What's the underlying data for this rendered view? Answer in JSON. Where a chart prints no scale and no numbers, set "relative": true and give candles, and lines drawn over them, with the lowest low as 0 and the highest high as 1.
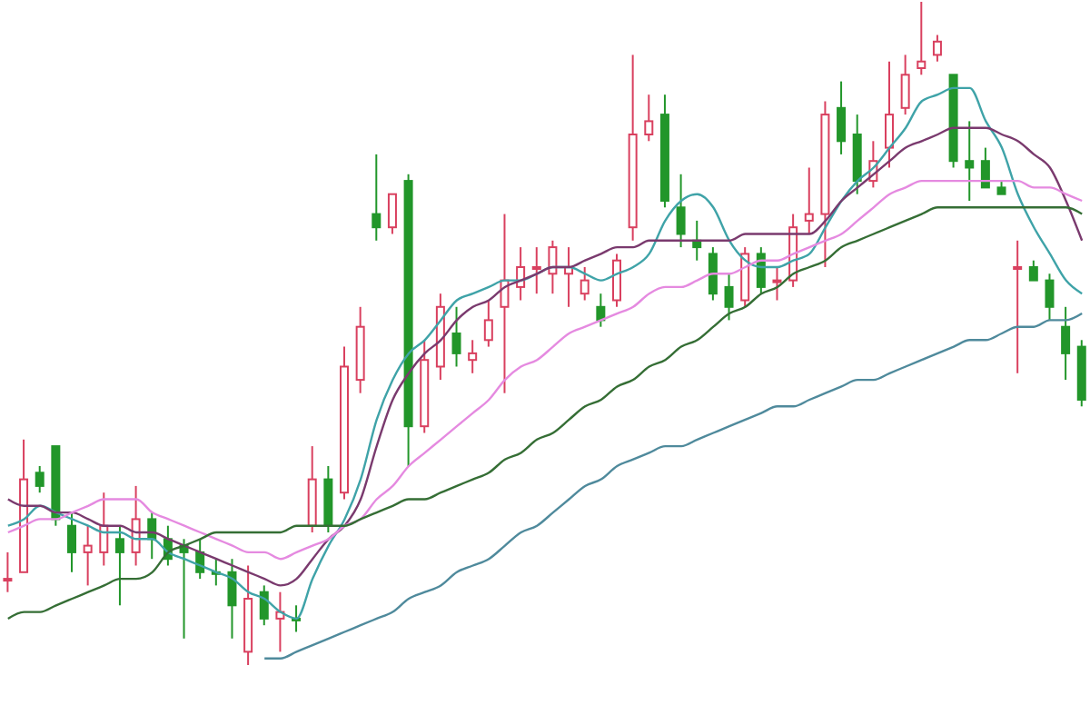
{
  "chart_data": {
    "type": "candlestick",
    "relative": true,
    "marker": "none",
    "categories": [
      null,
      null,
      null,
      null,
      null,
      null,
      null,
      null,
      null,
      null,
      null,
      null,
      null,
      null,
      null,
      null,
      null,
      null,
      null,
      null,
      null,
      null,
      null,
      null,
      null,
      null,
      null,
      null,
      null,
      null,
      null,
      null,
      null,
      null,
      null,
      null,
      null,
      null,
      null,
      null,
      null,
      null,
      null,
      null,
      null,
      null,
      null,
      null,
      null,
      null,
      null,
      null,
      null,
      null,
      null,
      null,
      null,
      null,
      null,
      null,
      null,
      null,
      null,
      null,
      null,
      null,
      null,
      null
    ],
    "ohlc": [
      [
        0.13,
        0.17,
        0.11,
        0.13
      ],
      [
        0.14,
        0.34,
        0.14,
        0.28
      ],
      [
        0.29,
        0.3,
        0.26,
        0.27
      ],
      [
        0.33,
        0.33,
        0.21,
        0.22
      ],
      [
        0.21,
        0.23,
        0.14,
        0.17
      ],
      [
        0.17,
        0.21,
        0.12,
        0.18
      ],
      [
        0.17,
        0.26,
        0.15,
        0.21
      ],
      [
        0.19,
        0.21,
        0.09,
        0.17
      ],
      [
        0.17,
        0.27,
        0.15,
        0.22
      ],
      [
        0.22,
        0.23,
        0.16,
        0.19
      ],
      [
        0.19,
        0.21,
        0.15,
        0.16
      ],
      [
        0.18,
        0.19,
        0.04,
        0.17
      ],
      [
        0.17,
        0.19,
        0.13,
        0.14
      ],
      [
        0.14,
        0.16,
        0.12,
        0.14
      ],
      [
        0.14,
        0.16,
        0.04,
        0.09
      ],
      [
        0.02,
        0.15,
        0,
        0.1
      ],
      [
        0.11,
        0.12,
        0.06,
        0.07
      ],
      [
        0.07,
        0.11,
        0.02,
        0.08
      ],
      [
        0.07,
        0.09,
        0.05,
        0.07
      ],
      [
        0.21,
        0.33,
        0.2,
        0.28
      ],
      [
        0.28,
        0.3,
        0.2,
        0.21
      ],
      [
        0.26,
        0.48,
        0.25,
        0.45
      ],
      [
        0.43,
        0.54,
        0.41,
        0.51
      ],
      [
        0.68,
        0.77,
        0.64,
        0.66
      ],
      [
        0.66,
        0.71,
        0.65,
        0.71
      ],
      [
        0.73,
        0.74,
        0.3,
        0.36
      ],
      [
        0.36,
        0.49,
        0.35,
        0.46
      ],
      [
        0.45,
        0.56,
        0.43,
        0.54
      ],
      [
        0.5,
        0.54,
        0.45,
        0.47
      ],
      [
        0.46,
        0.49,
        0.44,
        0.47
      ],
      [
        0.49,
        0.55,
        0.48,
        0.52
      ],
      [
        0.54,
        0.68,
        0.41,
        0.58
      ],
      [
        0.57,
        0.63,
        0.55,
        0.6
      ],
      [
        0.6,
        0.63,
        0.56,
        0.6
      ],
      [
        0.59,
        0.64,
        0.56,
        0.63
      ],
      [
        0.59,
        0.63,
        0.54,
        0.6
      ],
      [
        0.56,
        0.6,
        0.55,
        0.58
      ],
      [
        0.54,
        0.56,
        0.51,
        0.52
      ],
      [
        0.55,
        0.62,
        0.54,
        0.61
      ],
      [
        0.66,
        0.92,
        0.64,
        0.8
      ],
      [
        0.8,
        0.86,
        0.79,
        0.82
      ],
      [
        0.83,
        0.86,
        0.69,
        0.7
      ],
      [
        0.69,
        0.74,
        0.63,
        0.65
      ],
      [
        0.64,
        0.67,
        0.61,
        0.63
      ],
      [
        0.62,
        0.63,
        0.55,
        0.56
      ],
      [
        0.57,
        0.59,
        0.52,
        0.54
      ],
      [
        0.55,
        0.63,
        0.54,
        0.62
      ],
      [
        0.62,
        0.63,
        0.56,
        0.57
      ],
      [
        0.58,
        0.6,
        0.55,
        0.58
      ],
      [
        0.58,
        0.68,
        0.57,
        0.66
      ],
      [
        0.67,
        0.75,
        0.65,
        0.68
      ],
      [
        0.68,
        0.85,
        0.6,
        0.83
      ],
      [
        0.84,
        0.88,
        0.77,
        0.79
      ],
      [
        0.8,
        0.83,
        0.71,
        0.73
      ],
      [
        0.73,
        0.79,
        0.72,
        0.76
      ],
      [
        0.78,
        0.91,
        0.75,
        0.83
      ],
      [
        0.84,
        0.92,
        0.83,
        0.89
      ],
      [
        0.9,
        1,
        0.89,
        0.91
      ],
      [
        0.92,
        0.95,
        0.91,
        0.94
      ],
      [
        0.89,
        0.89,
        0.75,
        0.76
      ],
      [
        0.76,
        0.82,
        0.7,
        0.75
      ],
      [
        0.76,
        0.78,
        0.72,
        0.72
      ],
      [
        0.72,
        0.73,
        0.71,
        0.71
      ],
      [
        0.6,
        0.64,
        0.44,
        0.6
      ],
      [
        0.6,
        0.61,
        0.58,
        0.58
      ],
      [
        0.58,
        0.59,
        0.52,
        0.54
      ],
      [
        0.51,
        0.54,
        0.43,
        0.47
      ],
      [
        0.48,
        0.49,
        0.39,
        0.4
      ]
    ],
    "colors": [
      "#d9405f",
      "#d9405f",
      "#22962a",
      "#22962a",
      "#22962a",
      "#d9405f",
      "#d9405f",
      "#22962a",
      "#d9405f",
      "#22962a",
      "#22962a",
      "#22962a",
      "#22962a",
      "#22962a",
      "#22962a",
      "#d9405f",
      "#22962a",
      "#d9405f",
      "#22962a",
      "#d9405f",
      "#22962a",
      "#d9405f",
      "#d9405f",
      "#22962a",
      "#d9405f",
      "#22962a",
      "#d9405f",
      "#d9405f",
      "#22962a",
      "#d9405f",
      "#d9405f",
      "#d9405f",
      "#d9405f",
      "#d9405f",
      "#d9405f",
      "#d9405f",
      "#d9405f",
      "#22962a",
      "#d9405f",
      "#d9405f",
      "#d9405f",
      "#22962a",
      "#22962a",
      "#22962a",
      "#22962a",
      "#22962a",
      "#d9405f",
      "#22962a",
      "#d9405f",
      "#d9405f",
      "#d9405f",
      "#d9405f",
      "#22962a",
      "#22962a",
      "#d9405f",
      "#d9405f",
      "#d9405f",
      "#d9405f",
      "#d9405f",
      "#22962a",
      "#22962a",
      "#22962a",
      "#22962a",
      "#d9405f",
      "#22962a",
      "#22962a",
      "#22962a",
      "#22962a"
    ],
    "series": [
      {
        "type": "line",
        "color": "#3fa3a8",
        "values": [
          0.21,
          0.22,
          0.24,
          0.23,
          0.22,
          0.21,
          0.2,
          0.2,
          0.19,
          0.19,
          0.17,
          0.16,
          0.15,
          0.14,
          0.13,
          0.11,
          0.1,
          0.08,
          0.07,
          0.13,
          0.18,
          0.22,
          0.28,
          0.37,
          0.43,
          0.47,
          0.49,
          0.52,
          0.55,
          0.56,
          0.57,
          0.58,
          0.58,
          0.59,
          0.6,
          0.6,
          0.59,
          0.58,
          0.59,
          0.6,
          0.62,
          0.67,
          0.7,
          0.71,
          0.69,
          0.64,
          0.61,
          0.6,
          0.6,
          0.61,
          0.62,
          0.66,
          0.7,
          0.73,
          0.75,
          0.78,
          0.81,
          0.85,
          0.86,
          0.87,
          0.87,
          0.82,
          0.78,
          0.71,
          0.66,
          0.62,
          0.58,
          0.56
        ]
      },
      {
        "type": "line",
        "color": "#7a3a6e",
        "values": [
          0.25,
          0.24,
          0.24,
          0.23,
          0.23,
          0.22,
          0.21,
          0.21,
          0.2,
          0.2,
          0.19,
          0.18,
          0.17,
          0.16,
          0.15,
          0.14,
          0.13,
          0.12,
          0.13,
          0.16,
          0.19,
          0.21,
          0.25,
          0.33,
          0.4,
          0.44,
          0.47,
          0.49,
          0.52,
          0.54,
          0.55,
          0.57,
          0.58,
          0.59,
          0.6,
          0.6,
          0.61,
          0.62,
          0.63,
          0.63,
          0.64,
          0.64,
          0.64,
          0.64,
          0.64,
          0.64,
          0.65,
          0.65,
          0.65,
          0.65,
          0.65,
          0.67,
          0.7,
          0.72,
          0.74,
          0.76,
          0.78,
          0.79,
          0.8,
          0.81,
          0.81,
          0.81,
          0.8,
          0.79,
          0.77,
          0.75,
          0.7,
          0.64
        ]
      },
      {
        "type": "line",
        "color": "#e58ae0",
        "values": [
          0.2,
          0.21,
          0.22,
          0.22,
          0.23,
          0.24,
          0.25,
          0.25,
          0.25,
          0.23,
          0.22,
          0.21,
          0.2,
          0.19,
          0.18,
          0.17,
          0.17,
          0.16,
          0.17,
          0.18,
          0.19,
          0.21,
          0.22,
          0.25,
          0.27,
          0.3,
          0.32,
          0.34,
          0.36,
          0.38,
          0.4,
          0.43,
          0.45,
          0.46,
          0.48,
          0.5,
          0.51,
          0.52,
          0.53,
          0.54,
          0.56,
          0.57,
          0.57,
          0.58,
          0.59,
          0.59,
          0.6,
          0.61,
          0.61,
          0.62,
          0.63,
          0.64,
          0.65,
          0.67,
          0.69,
          0.71,
          0.72,
          0.73,
          0.73,
          0.73,
          0.73,
          0.73,
          0.73,
          0.73,
          0.72,
          0.72,
          0.71,
          0.7
        ]
      },
      {
        "type": "line",
        "color": "#356e35",
        "values": [
          0.07,
          0.08,
          0.08,
          0.09,
          0.1,
          0.11,
          0.12,
          0.13,
          0.13,
          0.14,
          0.17,
          0.18,
          0.19,
          0.2,
          0.2,
          0.2,
          0.2,
          0.2,
          0.21,
          0.21,
          0.21,
          0.21,
          0.22,
          0.23,
          0.24,
          0.25,
          0.25,
          0.26,
          0.27,
          0.28,
          0.29,
          0.31,
          0.32,
          0.34,
          0.35,
          0.37,
          0.39,
          0.4,
          0.42,
          0.43,
          0.45,
          0.46,
          0.48,
          0.49,
          0.51,
          0.53,
          0.54,
          0.56,
          0.57,
          0.59,
          0.6,
          0.61,
          0.63,
          0.64,
          0.65,
          0.66,
          0.67,
          0.68,
          0.69,
          0.69,
          0.69,
          0.69,
          0.69,
          0.69,
          0.69,
          0.69,
          0.69,
          0.68
        ]
      },
      {
        "type": "line",
        "color": "#4f8a9c",
        "values": [
          null,
          null,
          null,
          null,
          null,
          null,
          null,
          null,
          null,
          null,
          null,
          null,
          null,
          null,
          null,
          null,
          0.01,
          0.01,
          0.02,
          0.03,
          0.04,
          0.05,
          0.06,
          0.07,
          0.08,
          0.1,
          0.11,
          0.12,
          0.14,
          0.15,
          0.16,
          0.18,
          0.2,
          0.21,
          0.23,
          0.25,
          0.27,
          0.28,
          0.3,
          0.31,
          0.32,
          0.33,
          0.33,
          0.34,
          0.35,
          0.36,
          0.37,
          0.38,
          0.39,
          0.39,
          0.4,
          0.41,
          0.42,
          0.43,
          0.43,
          0.44,
          0.45,
          0.46,
          0.47,
          0.48,
          0.49,
          0.49,
          0.5,
          0.51,
          0.51,
          0.52,
          0.52,
          0.53
        ]
      }
    ]
  }
}
